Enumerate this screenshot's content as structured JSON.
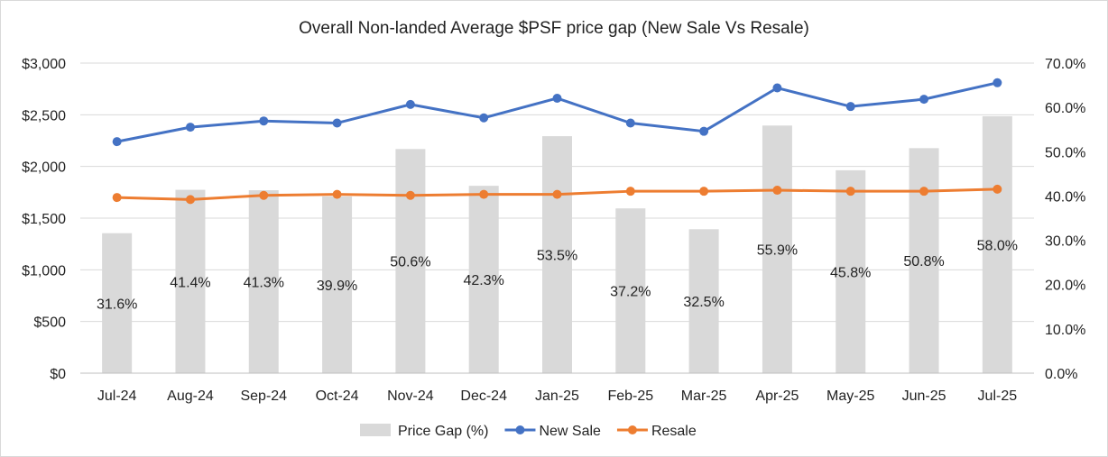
{
  "chart_data": {
    "type": "bar+line",
    "title": "Overall Non-landed Average $PSF price gap (New Sale Vs Resale)",
    "categories": [
      "Jul-24",
      "Aug-24",
      "Sep-24",
      "Oct-24",
      "Nov-24",
      "Dec-24",
      "Jan-25",
      "Feb-25",
      "Mar-25",
      "Apr-25",
      "May-25",
      "Jun-25",
      "Jul-25"
    ],
    "series": [
      {
        "name": "Price Gap (%)",
        "type": "bar",
        "axis": "right",
        "color": "#d9d9d9",
        "values": [
          31.6,
          41.4,
          41.3,
          39.9,
          50.6,
          42.3,
          53.5,
          37.2,
          32.5,
          55.9,
          45.8,
          50.8,
          58.0
        ],
        "labels": [
          "31.6%",
          "41.4%",
          "41.3%",
          "39.9%",
          "50.6%",
          "42.3%",
          "53.5%",
          "37.2%",
          "32.5%",
          "55.9%",
          "45.8%",
          "50.8%",
          "58.0%"
        ]
      },
      {
        "name": "New Sale",
        "type": "line",
        "axis": "left",
        "color": "#4472c4",
        "values": [
          2240,
          2380,
          2440,
          2420,
          2600,
          2470,
          2660,
          2420,
          2340,
          2760,
          2580,
          2650,
          2810
        ]
      },
      {
        "name": "Resale",
        "type": "line",
        "axis": "left",
        "color": "#ed7d31",
        "values": [
          1700,
          1680,
          1720,
          1730,
          1720,
          1730,
          1730,
          1760,
          1760,
          1770,
          1760,
          1760,
          1780
        ]
      }
    ],
    "y_left": {
      "min": 0,
      "max": 3000,
      "step": 500,
      "tick_labels": [
        "$0",
        "$500",
        "$1,000",
        "$1,500",
        "$2,000",
        "$2,500",
        "$3,000"
      ]
    },
    "y_right": {
      "min": 0,
      "max": 70,
      "step": 10,
      "tick_labels": [
        "0.0%",
        "10.0%",
        "20.0%",
        "30.0%",
        "40.0%",
        "50.0%",
        "60.0%",
        "70.0%"
      ]
    },
    "grid": true,
    "legend": "bottom"
  }
}
